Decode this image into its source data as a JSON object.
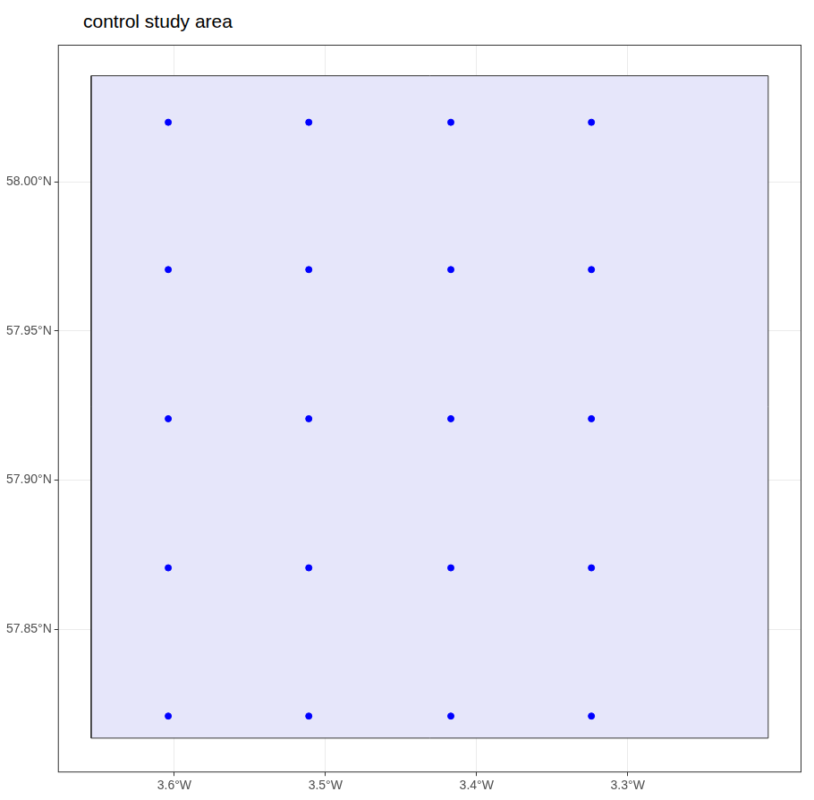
{
  "chart_data": {
    "type": "map",
    "title": "control study area",
    "xlim": [
      -3.677,
      -3.185
    ],
    "ylim": [
      57.802,
      58.046
    ],
    "xticks": [
      {
        "value": -3.6,
        "label": "3.6°W"
      },
      {
        "value": -3.5,
        "label": "3.5°W"
      },
      {
        "value": -3.4,
        "label": "3.4°W"
      },
      {
        "value": -3.3,
        "label": "3.3°W"
      }
    ],
    "yticks": [
      {
        "value": 57.85,
        "label": "57.85°N"
      },
      {
        "value": 57.9,
        "label": "57.90°N"
      },
      {
        "value": 57.95,
        "label": "57.95°N"
      },
      {
        "value": 58.0,
        "label": "58.00°N"
      }
    ],
    "grid": true,
    "series": [
      {
        "type": "polygon",
        "color": "#e6e6fa",
        "x": [
          -3.655,
          -3.207,
          -3.207,
          -3.655,
          -3.655
        ],
        "y": [
          57.8135,
          57.8135,
          58.0356,
          58.0356,
          57.8135
        ]
      },
      {
        "type": "scatter",
        "color": "#0000ff",
        "x": [
          -3.604,
          -3.511,
          -3.417,
          -3.324,
          -3.604,
          -3.511,
          -3.417,
          -3.324,
          -3.604,
          -3.511,
          -3.417,
          -3.324,
          -3.604,
          -3.511,
          -3.417,
          -3.324,
          -3.604,
          -3.511,
          -3.417,
          -3.324
        ],
        "y": [
          58.02,
          58.02,
          58.02,
          58.02,
          57.9706,
          57.9706,
          57.9706,
          57.9706,
          57.9206,
          57.9206,
          57.9206,
          57.9206,
          57.8706,
          57.8706,
          57.8706,
          57.8706,
          57.8209,
          57.8209,
          57.8209,
          57.8209
        ]
      }
    ]
  }
}
